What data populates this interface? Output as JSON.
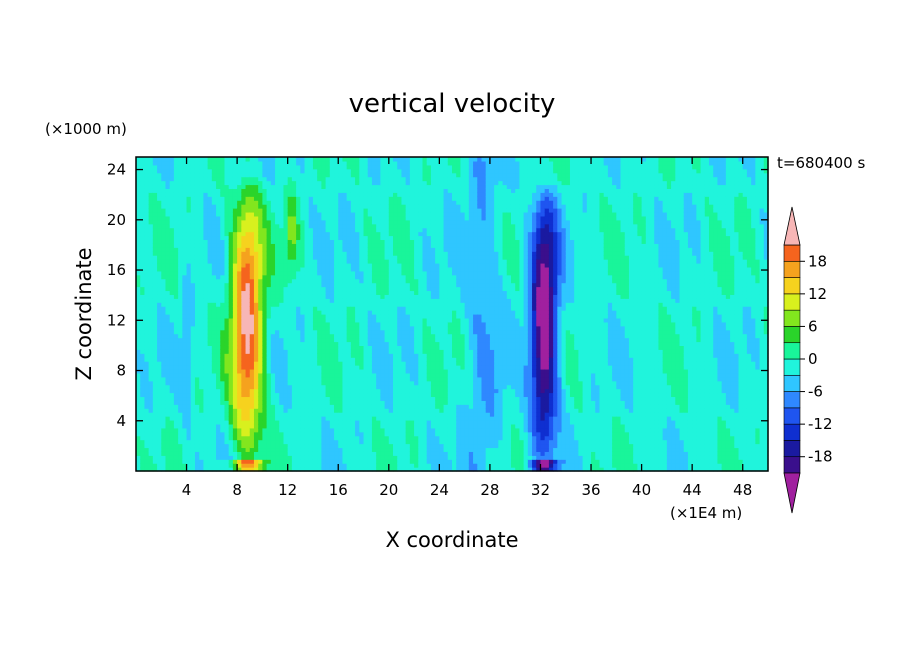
{
  "chart_data": {
    "type": "heatmap",
    "title": "vertical velocity",
    "xlabel": "X coordinate",
    "ylabel": "Z coordinate",
    "x_units": "(×1E4 m)",
    "y_units": "(×1000 m)",
    "time_label": "t=680400 s",
    "xlim": [
      0,
      50
    ],
    "ylim": [
      0,
      25
    ],
    "x_ticks": [
      4,
      8,
      12,
      16,
      20,
      24,
      28,
      32,
      36,
      40,
      44,
      48
    ],
    "y_ticks": [
      4,
      8,
      12,
      16,
      20,
      24
    ],
    "colorbar": {
      "levels": [
        -21,
        -18,
        -15,
        -12,
        -9,
        -6,
        -3,
        0,
        3,
        6,
        9,
        12,
        15,
        18,
        21
      ],
      "tick_labels": [
        "18",
        "12",
        "6",
        "0",
        "-6",
        "-12",
        "-18"
      ],
      "tick_values": [
        18,
        12,
        6,
        0,
        -6,
        -12,
        -18
      ],
      "colors": [
        "#3a0f8c",
        "#1a1aa0",
        "#0f2fd0",
        "#1f55f0",
        "#2f88ff",
        "#2fc6ff",
        "#20f4dc",
        "#19f59a",
        "#2ad42a",
        "#82e61e",
        "#d8f01e",
        "#f6d21e",
        "#f5a21e",
        "#f5641e",
        "#e6141e"
      ],
      "under_color": "#a0209f",
      "over_color": "#f7b6b6"
    },
    "features": [
      {
        "name": "updraft",
        "x": 8.8,
        "z_top": 23.5,
        "peak_value": 21
      },
      {
        "name": "downdraft",
        "x": 32.3,
        "z_top": 23.0,
        "peak_value": -21
      }
    ]
  }
}
